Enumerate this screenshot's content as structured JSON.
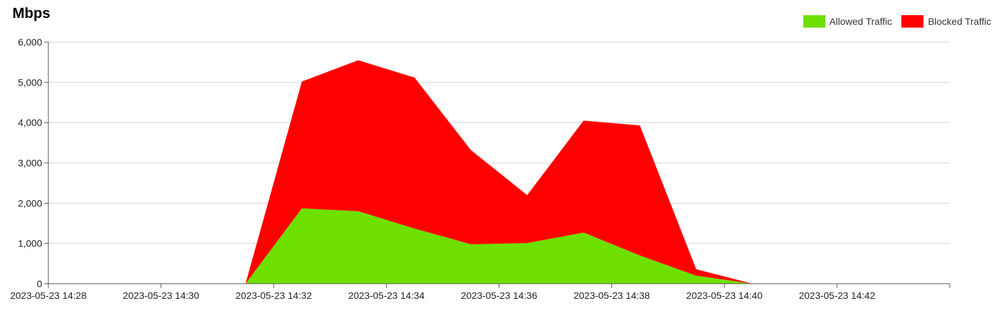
{
  "chart_data": {
    "type": "area",
    "stacked": true,
    "title": "Mbps",
    "ylim": [
      0,
      6000
    ],
    "yticks": [
      "0",
      "1,000",
      "2,000",
      "3,000",
      "4,000",
      "5,000",
      "6,000"
    ],
    "ytick_values": [
      0,
      1000,
      2000,
      3000,
      4000,
      5000,
      6000
    ],
    "xlim": [
      "2023-05-23 14:28",
      "2023-05-23 14:44"
    ],
    "xticks": [
      "2023-05-23 14:28",
      "2023-05-23 14:30",
      "2023-05-23 14:32",
      "2023-05-23 14:34",
      "2023-05-23 14:36",
      "2023-05-23 14:38",
      "2023-05-23 14:40",
      "2023-05-23 14:42"
    ],
    "x": [
      "2023-05-23 14:31:30",
      "2023-05-23 14:32:30",
      "2023-05-23 14:33:30",
      "2023-05-23 14:34:30",
      "2023-05-23 14:35:30",
      "2023-05-23 14:36:30",
      "2023-05-23 14:37:30",
      "2023-05-23 14:38:30",
      "2023-05-23 14:39:30",
      "2023-05-23 14:40:30"
    ],
    "series": [
      {
        "name": "Allowed Traffic",
        "color": "#6ee000",
        "values": [
          0,
          1870,
          1800,
          1370,
          980,
          1010,
          1270,
          700,
          200,
          0
        ]
      },
      {
        "name": "Blocked Traffic",
        "color": "#ff0000",
        "values": [
          0,
          3150,
          3750,
          3750,
          2340,
          1190,
          2780,
          3230,
          160,
          0
        ]
      }
    ],
    "grid": true,
    "legend": "top-right"
  }
}
